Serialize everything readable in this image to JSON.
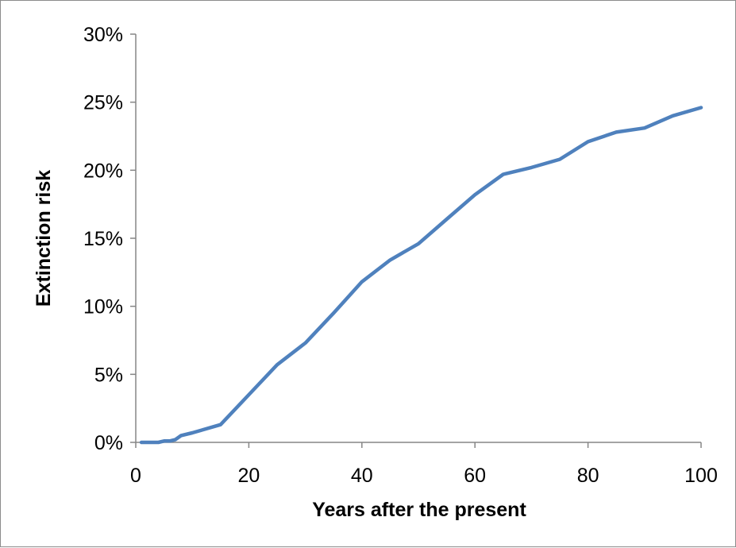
{
  "chart_data": {
    "type": "line",
    "title": "",
    "xlabel": "Years after the present",
    "ylabel": "Extinction risk",
    "xlim": [
      0,
      100
    ],
    "ylim": [
      0,
      0.3
    ],
    "x_ticks": [
      0,
      20,
      40,
      60,
      80,
      100
    ],
    "x_tick_labels": [
      "0",
      "20",
      "40",
      "60",
      "80",
      "100"
    ],
    "y_ticks": [
      0,
      0.05,
      0.1,
      0.15,
      0.2,
      0.25,
      0.3
    ],
    "y_tick_labels": [
      "0%",
      "5%",
      "10%",
      "15%",
      "20%",
      "25%",
      "30%"
    ],
    "grid": false,
    "legend": "none",
    "series": [
      {
        "color": "#4f81bd",
        "x": [
          1,
          2,
          3,
          4,
          5,
          6,
          7,
          8,
          10,
          15,
          20,
          25,
          30,
          35,
          40,
          45,
          50,
          55,
          60,
          65,
          70,
          75,
          80,
          85,
          90,
          95,
          100
        ],
        "y": [
          0.0,
          0.0,
          0.0,
          0.0,
          0.001,
          0.001,
          0.002,
          0.005,
          0.007,
          0.013,
          0.035,
          0.057,
          0.073,
          0.095,
          0.118,
          0.134,
          0.146,
          0.164,
          0.182,
          0.197,
          0.202,
          0.208,
          0.221,
          0.228,
          0.231,
          0.24,
          0.246
        ]
      }
    ]
  }
}
